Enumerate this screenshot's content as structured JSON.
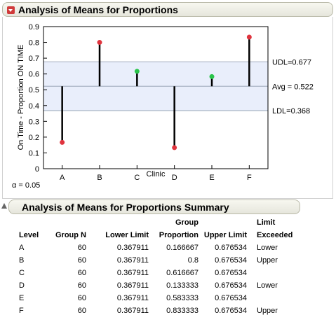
{
  "header": {
    "title": "Analysis of Means for Proportions"
  },
  "alpha_label": "α = 0.05",
  "chart_data": {
    "type": "scatter",
    "style": "analysis-of-means",
    "categories": [
      "A",
      "B",
      "C",
      "D",
      "E",
      "F"
    ],
    "values": [
      0.166667,
      0.8,
      0.616667,
      0.133333,
      0.583333,
      0.833333
    ],
    "xlabel": "Clinic",
    "ylabel": "On Time - Proportion ON TIME",
    "ylim": [
      0,
      0.9
    ],
    "yticks": [
      0,
      0.1,
      0.2,
      0.3,
      0.4,
      0.5,
      0.6,
      0.7,
      0.8,
      0.9
    ],
    "ytick_labels": [
      "0",
      "0.1",
      "0.2",
      "0.3",
      "0.4",
      "0.5",
      "0.6",
      "0.7",
      "0.8",
      "0.9"
    ],
    "center": 0.522,
    "udl": 0.677,
    "ldl": 0.368,
    "labels": {
      "udl": "UDL=0.677",
      "avg": "Avg = 0.522",
      "ldl": "LDL=0.368"
    },
    "grid": false,
    "colors": {
      "out": "#e0343e",
      "in": "#29c44a",
      "band": "#e9eefb",
      "limit_line": "#a9b3c4",
      "stem": "#000000"
    }
  },
  "summary": {
    "title": "Analysis of Means for Proportions Summary",
    "header_top": [
      "",
      "",
      "",
      "Group",
      "",
      "Limit"
    ],
    "header_bottom": [
      "Level",
      "Group N",
      "Lower Limit",
      "Proportion",
      "Upper Limit",
      "Exceeded"
    ],
    "rows": [
      [
        "A",
        "60",
        "0.367911",
        "0.166667",
        "0.676534",
        "Lower"
      ],
      [
        "B",
        "60",
        "0.367911",
        "0.8",
        "0.676534",
        "Upper"
      ],
      [
        "C",
        "60",
        "0.367911",
        "0.616667",
        "0.676534",
        ""
      ],
      [
        "D",
        "60",
        "0.367911",
        "0.133333",
        "0.676534",
        "Lower"
      ],
      [
        "E",
        "60",
        "0.367911",
        "0.583333",
        "0.676534",
        ""
      ],
      [
        "F",
        "60",
        "0.367911",
        "0.833333",
        "0.676534",
        "Upper"
      ]
    ]
  }
}
